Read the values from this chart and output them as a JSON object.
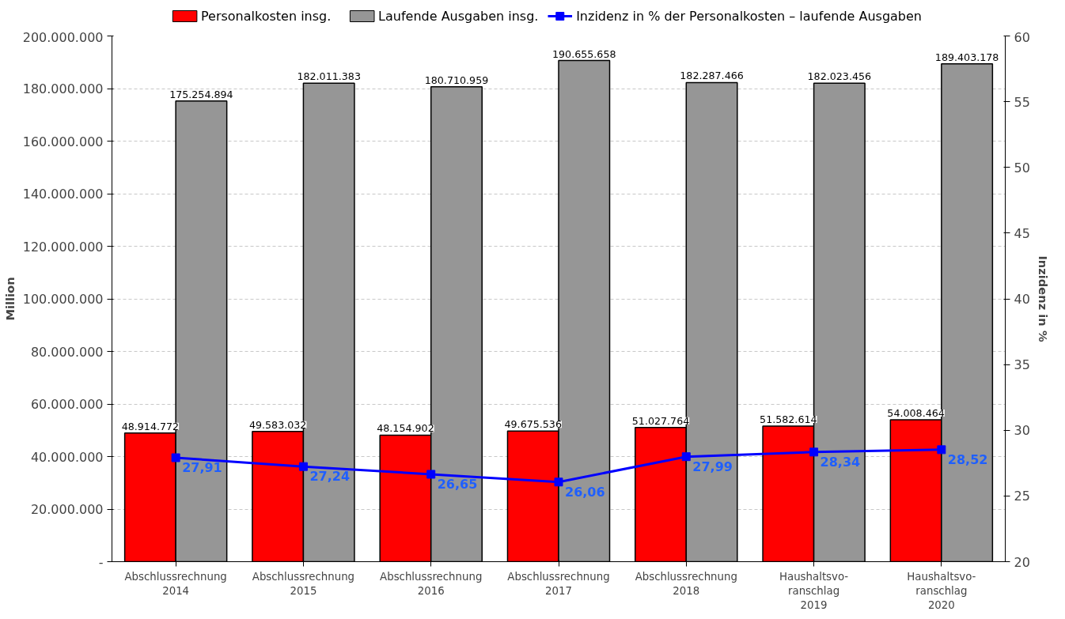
{
  "chart_data": {
    "type": "bar",
    "categories": [
      "Abschlussrechnung\n2014",
      "Abschlussrechnung\n2015",
      "Abschlussrechnung\n2016",
      "Abschlussrechnung\n2017",
      "Abschlussrechnung\n2018",
      "Haushaltsvo-\nranschlag\n2019",
      "Haushaltsvo-\nranschlag\n2020"
    ],
    "series": [
      {
        "name": "Personalkosten insg.",
        "color": "#ff0000",
        "values": [
          48914772,
          49583032,
          48154902,
          49675536,
          51027764,
          51582614,
          54008464
        ],
        "value_labels": [
          "48.914.772",
          "49.583.032",
          "48.154.902",
          "49.675.536",
          "51.027.764",
          "51.582.614",
          "54.008.464"
        ]
      },
      {
        "name": "Laufende Ausgaben insg.",
        "color": "#969696",
        "values": [
          175254894,
          182011383,
          180710959,
          190655658,
          182287466,
          182023456,
          189403178
        ],
        "value_labels": [
          "175.254.894",
          "182.011.383",
          "180.710.959",
          "190.655.658",
          "182.287.466",
          "182.023.456",
          "189.403.178"
        ]
      },
      {
        "name": "Inzidenz in % der Personalkosten – laufende Ausgaben",
        "type": "line",
        "axis": "y2",
        "color": "#0000ff",
        "marker": "square",
        "values": [
          27.91,
          27.24,
          26.65,
          26.06,
          27.99,
          28.34,
          28.52
        ],
        "value_labels": [
          "27,91",
          "27,24",
          "26,65",
          "26,06",
          "27,99",
          "28,34",
          "28,52"
        ]
      }
    ],
    "ylabel": "Million",
    "y2label": "Inzidenz in %",
    "ylim": [
      0,
      200000000
    ],
    "yticks": [
      {
        "value": 0,
        "label": "-"
      },
      {
        "value": 20000000,
        "label": "20.000.000"
      },
      {
        "value": 40000000,
        "label": "40.000.000"
      },
      {
        "value": 60000000,
        "label": "60.000.000"
      },
      {
        "value": 80000000,
        "label": "80.000.000"
      },
      {
        "value": 100000000,
        "label": "100.000.000"
      },
      {
        "value": 120000000,
        "label": "120.000.000"
      },
      {
        "value": 140000000,
        "label": "140.000.000"
      },
      {
        "value": 160000000,
        "label": "160.000.000"
      },
      {
        "value": 180000000,
        "label": "180.000.000"
      },
      {
        "value": 200000000,
        "label": "200.000.000"
      }
    ],
    "y2lim": [
      20,
      60
    ],
    "y2ticks": [
      20,
      25,
      30,
      35,
      40,
      45,
      50,
      55,
      60
    ],
    "grid": "y",
    "legend": "top"
  }
}
